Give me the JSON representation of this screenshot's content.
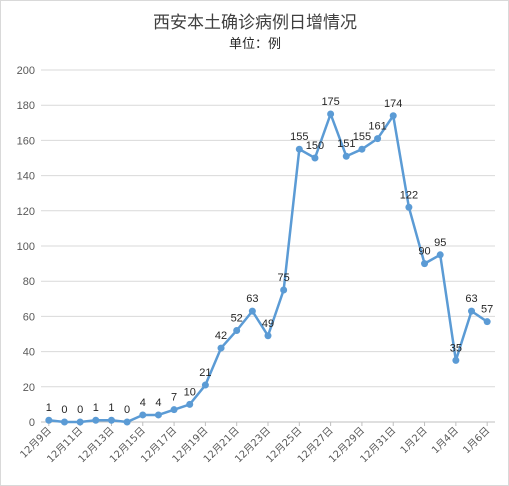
{
  "chart_data": {
    "type": "line",
    "title": "西安本土确诊病例日增情况",
    "subtitle": "单位：例",
    "x": [
      "12月9日",
      "12月10日",
      "12月11日",
      "12月12日",
      "12月13日",
      "12月14日",
      "12月15日",
      "12月16日",
      "12月17日",
      "12月18日",
      "12月19日",
      "12月20日",
      "12月21日",
      "12月22日",
      "12月23日",
      "12月24日",
      "12月25日",
      "12月26日",
      "12月27日",
      "12月28日",
      "12月29日",
      "12月30日",
      "12月31日",
      "1月1日",
      "1月2日",
      "1月3日",
      "1月4日",
      "1月5日",
      "1月6日"
    ],
    "tick_labels": [
      "12月9日",
      "12月11日",
      "12月13日",
      "12月15日",
      "12月17日",
      "12月19日",
      "12月21日",
      "12月23日",
      "12月25日",
      "12月27日",
      "12月29日",
      "12月31日",
      "1月2日",
      "1月4日",
      "1月6日"
    ],
    "series": [
      {
        "values": [
          1,
          0,
          0,
          1,
          1,
          0,
          4,
          4,
          7,
          10,
          21,
          42,
          52,
          63,
          49,
          75,
          155,
          150,
          175,
          151,
          155,
          161,
          174,
          122,
          90,
          95,
          35,
          63,
          57
        ]
      }
    ],
    "ylim": [
      0,
      200
    ],
    "yticks": [
      "0",
      "20",
      "40",
      "60",
      "80",
      "100",
      "120",
      "140",
      "160",
      "180",
      "200"
    ],
    "grid": true,
    "line_color": "#5b9bd5",
    "grid_color": "#d9d9d9"
  }
}
